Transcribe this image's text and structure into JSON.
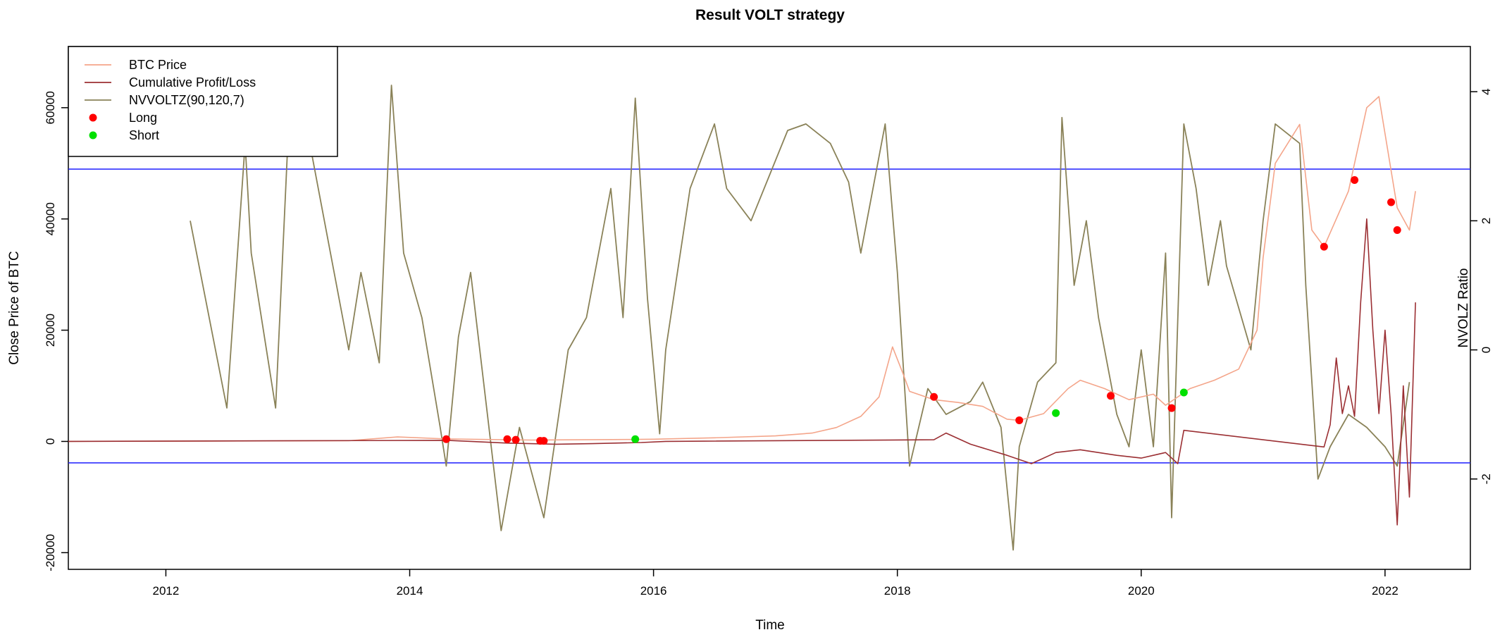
{
  "chart_data": {
    "type": "line",
    "title": "Result VOLT strategy",
    "xlabel": "Time",
    "ylabel": "Close Price of BTC",
    "y2label": "NVOLZ Ratio",
    "xlim": [
      2011.2,
      2022.7
    ],
    "ylim": [
      -23000,
      71000
    ],
    "y2lim": [
      -3.4,
      4.7
    ],
    "x_ticks": [
      "2012",
      "2014",
      "2016",
      "2018",
      "2020",
      "2022"
    ],
    "y_ticks": [
      "-20000",
      "0",
      "20000",
      "40000",
      "60000"
    ],
    "y2_ticks": [
      "-2",
      "0",
      "2",
      "4"
    ],
    "hlines_nvolz": [
      2.8,
      -1.75
    ],
    "legend_position": "top-left",
    "colors": {
      "btc": "#f4a58a",
      "pnl": "#9b2f33",
      "nvolz": "#8a8258",
      "long": "#ff0000",
      "short": "#00e000",
      "hline": "#1f1fff"
    },
    "series": [
      {
        "name": "BTC Price",
        "x": [
          2011.2,
          2013.5,
          2013.9,
          2014.3,
          2015.0,
          2015.8,
          2016.0,
          2016.5,
          2017.0,
          2017.3,
          2017.5,
          2017.7,
          2017.85,
          2017.96,
          2018.05,
          2018.1,
          2018.3,
          2018.5,
          2018.7,
          2018.9,
          2019.0,
          2019.2,
          2019.4,
          2019.5,
          2019.7,
          2019.9,
          2020.1,
          2020.2,
          2020.4,
          2020.6,
          2020.8,
          2020.95,
          2021.0,
          2021.1,
          2021.3,
          2021.4,
          2021.5,
          2021.6,
          2021.7,
          2021.85,
          2021.95,
          2022.1,
          2022.2,
          2022.25
        ],
        "y": [
          0,
          120,
          800,
          450,
          250,
          350,
          400,
          650,
          1000,
          1500,
          2500,
          4500,
          8000,
          17000,
          12000,
          9000,
          7500,
          7000,
          6300,
          4000,
          3800,
          5000,
          9500,
          11000,
          9500,
          7500,
          8500,
          6500,
          9500,
          11000,
          13000,
          20000,
          33000,
          50000,
          57000,
          38000,
          35000,
          40000,
          45000,
          60000,
          62000,
          42000,
          38000,
          45000
        ]
      },
      {
        "name": "Cumulative Profit/Loss",
        "x": [
          2011.2,
          2014.3,
          2014.8,
          2015.2,
          2015.5,
          2015.9,
          2016.1,
          2018.3,
          2018.4,
          2018.6,
          2018.9,
          2019.1,
          2019.3,
          2019.5,
          2019.8,
          2020.0,
          2020.2,
          2020.3,
          2020.35,
          2021.5,
          2021.55,
          2021.6,
          2021.65,
          2021.7,
          2021.75,
          2021.8,
          2021.85,
          2021.9,
          2021.95,
          2022.0,
          2022.05,
          2022.1,
          2022.15,
          2022.2,
          2022.25
        ],
        "y": [
          0,
          200,
          -300,
          -500,
          -400,
          -200,
          0,
          300,
          1500,
          -500,
          -2500,
          -4000,
          -2000,
          -1500,
          -2500,
          -3000,
          -2000,
          -4000,
          2000,
          -1000,
          3000,
          15000,
          5000,
          10000,
          4500,
          25000,
          40000,
          20000,
          5000,
          20000,
          5000,
          -15000,
          10000,
          -10000,
          25000
        ]
      },
      {
        "name": "NVVOLTZ(90,120,7)",
        "x": [
          2012.2,
          2012.5,
          2012.65,
          2012.7,
          2012.9,
          2013.0,
          2013.2,
          2013.3,
          2013.5,
          2013.6,
          2013.75,
          2013.85,
          2013.95,
          2014.1,
          2014.25,
          2014.3,
          2014.4,
          2014.5,
          2014.75,
          2014.9,
          2015.1,
          2015.3,
          2015.45,
          2015.65,
          2015.75,
          2015.85,
          2015.95,
          2016.05,
          2016.1,
          2016.3,
          2016.5,
          2016.6,
          2016.8,
          2017.1,
          2017.25,
          2017.45,
          2017.6,
          2017.7,
          2017.9,
          2018.0,
          2018.1,
          2018.25,
          2018.4,
          2018.6,
          2018.7,
          2018.85,
          2018.95,
          2019.0,
          2019.15,
          2019.3,
          2019.35,
          2019.45,
          2019.55,
          2019.65,
          2019.8,
          2019.9,
          2020.0,
          2020.1,
          2020.2,
          2020.25,
          2020.35,
          2020.45,
          2020.55,
          2020.65,
          2020.7,
          2020.9,
          2021.0,
          2021.1,
          2021.3,
          2021.35,
          2021.45,
          2021.55,
          2021.7,
          2021.85,
          2022.0,
          2022.1,
          2022.2
        ],
        "y": [
          2.0,
          -0.9,
          3.2,
          1.5,
          -0.9,
          3.2,
          3.0,
          2.0,
          0.0,
          1.2,
          -0.2,
          4.1,
          1.5,
          0.5,
          -1.2,
          -1.8,
          0.2,
          1.2,
          -2.8,
          -1.2,
          -2.6,
          0.0,
          0.5,
          2.5,
          0.5,
          3.9,
          0.8,
          -1.3,
          0.0,
          2.5,
          3.5,
          2.5,
          2.0,
          3.4,
          3.5,
          3.2,
          2.6,
          1.5,
          3.5,
          1.2,
          -1.8,
          -0.6,
          -1.0,
          -0.8,
          -0.5,
          -1.2,
          -3.1,
          -1.5,
          -0.5,
          -0.2,
          3.6,
          1.0,
          2.0,
          0.5,
          -1.0,
          -1.5,
          0.0,
          -1.5,
          1.5,
          -2.6,
          3.5,
          2.5,
          1.0,
          2.0,
          1.3,
          0.0,
          2.0,
          3.5,
          3.2,
          1.0,
          -2.0,
          -1.5,
          -1.0,
          -1.2,
          -1.5,
          -1.8,
          -0.5
        ]
      }
    ],
    "long_signals": {
      "name": "Long",
      "x": [
        2014.3,
        2014.8,
        2014.87,
        2015.07,
        2015.1,
        2018.3,
        2019.0,
        2019.75,
        2020.25,
        2021.5,
        2021.75,
        2022.05,
        2022.1
      ],
      "y": [
        400,
        400,
        300,
        100,
        100,
        8000,
        3800,
        8200,
        6000,
        35000,
        47000,
        43000,
        38000
      ]
    },
    "short_signals": {
      "name": "Short",
      "x": [
        2015.85,
        2019.3,
        2020.35
      ],
      "y": [
        400,
        5100,
        8800
      ]
    }
  }
}
